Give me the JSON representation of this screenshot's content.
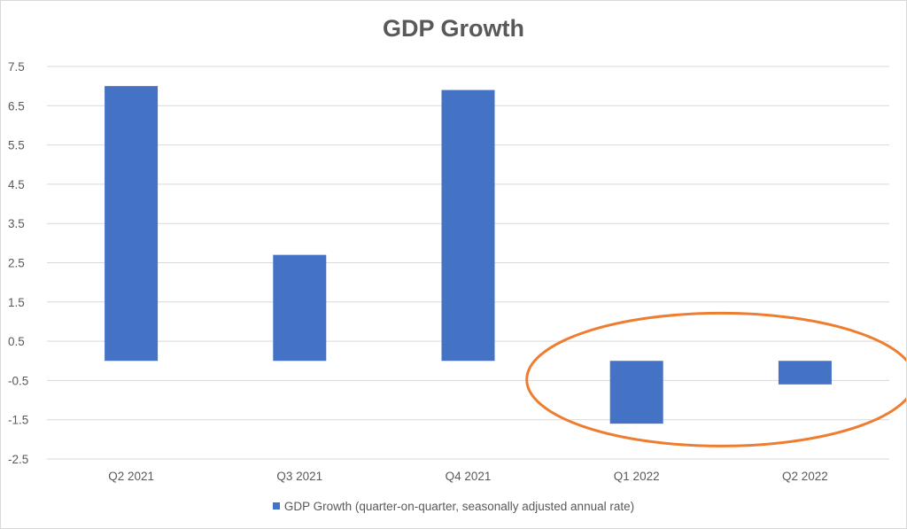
{
  "chart_data": {
    "type": "bar",
    "title": "GDP Growth",
    "categories": [
      "Q2 2021",
      "Q3 2021",
      "Q4 2021",
      "Q1 2022",
      "Q2 2022"
    ],
    "series": [
      {
        "name": "GDP Growth (quarter-on-quarter, seasonally adjusted annual rate)",
        "values": [
          7.0,
          2.7,
          6.9,
          -1.6,
          -0.6
        ]
      }
    ],
    "ylim": [
      -2.5,
      7.5
    ],
    "yticks": [
      "7.5",
      "6.5",
      "5.5",
      "4.5",
      "3.5",
      "2.5",
      "1.5",
      "0.5",
      "-0.5",
      "-1.5",
      "-2.5"
    ],
    "grid": true,
    "legend_position": "bottom",
    "annotation": {
      "shape": "ellipse",
      "highlights": [
        "Q1 2022",
        "Q2 2022"
      ],
      "color": "#ED7D31"
    },
    "colors": {
      "bar": "#4472C4",
      "grid": "#d9d9d9",
      "text": "#595959"
    }
  }
}
